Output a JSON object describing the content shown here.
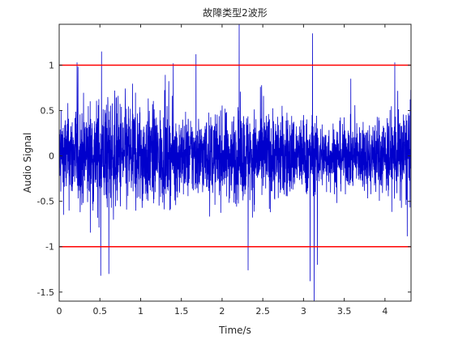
{
  "chart_data": {
    "type": "line",
    "title": "故障类型2波形",
    "xlabel": "Time/s",
    "ylabel": "Audio Signal",
    "xlim": [
      0,
      4.32
    ],
    "ylim": [
      -1.6,
      1.45
    ],
    "x_ticks": [
      0,
      0.5,
      1,
      1.5,
      2,
      2.5,
      3,
      3.5,
      4
    ],
    "x_tick_labels": [
      "0",
      "0.5",
      "1",
      "1.5",
      "2",
      "2.5",
      "3",
      "3.5",
      "4"
    ],
    "y_ticks": [
      -1.5,
      -1,
      -0.5,
      0,
      0.5,
      1
    ],
    "y_tick_labels": [
      "-1.5",
      "-1",
      "-0.5",
      "0",
      "0.5",
      "1"
    ],
    "grid": false,
    "series": [
      {
        "kind": "noise-waveform",
        "color": "#0000cc",
        "typical_amplitude": 0.45,
        "peaks": [
          {
            "x": 0.22,
            "y": 1.03
          },
          {
            "x": 0.51,
            "y": -1.32
          },
          {
            "x": 0.52,
            "y": 1.15
          },
          {
            "x": 0.61,
            "y": -1.3
          },
          {
            "x": 1.4,
            "y": 1.02
          },
          {
            "x": 1.68,
            "y": 1.12
          },
          {
            "x": 2.21,
            "y": 1.46
          },
          {
            "x": 2.32,
            "y": -1.26
          },
          {
            "x": 3.08,
            "y": -1.38
          },
          {
            "x": 3.11,
            "y": 1.35
          },
          {
            "x": 3.13,
            "y": -1.63
          },
          {
            "x": 3.17,
            "y": -1.2
          },
          {
            "x": 4.12,
            "y": 1.03
          }
        ]
      },
      {
        "kind": "hline",
        "y": 1,
        "color": "#ff0000"
      },
      {
        "kind": "hline",
        "y": -1,
        "color": "#ff0000"
      }
    ]
  }
}
